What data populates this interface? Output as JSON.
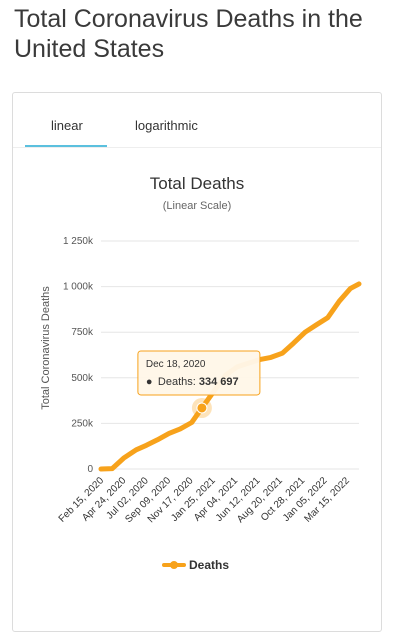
{
  "page_title": "Total Coronavirus Deaths in the United States",
  "tabs": [
    {
      "label": "linear",
      "active": true
    },
    {
      "label": "logarithmic",
      "active": false
    }
  ],
  "colors": {
    "series": "#f7a21b",
    "tab_accent": "#5bc0de",
    "grid": "#e6e6e6"
  },
  "chart_data": {
    "type": "line",
    "title": "Total Deaths",
    "subtitle": "(Linear Scale)",
    "ylabel": "Total Coronavirus Deaths",
    "xlabel": "",
    "ylim": [
      0,
      1250000
    ],
    "yticks": [
      0,
      250000,
      500000,
      750000,
      1000000,
      1250000
    ],
    "ytick_labels": [
      "0",
      "250k",
      "500k",
      "750k",
      "1 000k",
      "1 250k"
    ],
    "xtick_labels": [
      "Feb 15, 2020",
      "Apr 24, 2020",
      "Jul 02, 2020",
      "Sep 09, 2020",
      "Nov 17, 2020",
      "Jan 25, 2021",
      "Apr 04, 2021",
      "Jun 12, 2021",
      "Aug 20, 2021",
      "Oct 28, 2021",
      "Jan 05, 2022",
      "Mar 15, 2022"
    ],
    "grid": true,
    "legend": "bottom",
    "series": [
      {
        "name": "Deaths",
        "x": [
          "2020-02-15",
          "2020-03-20",
          "2020-04-24",
          "2020-06-01",
          "2020-07-02",
          "2020-08-05",
          "2020-09-09",
          "2020-10-13",
          "2020-11-17",
          "2020-12-18",
          "2021-01-25",
          "2021-02-28",
          "2021-04-04",
          "2021-05-08",
          "2021-06-12",
          "2021-07-16",
          "2021-08-20",
          "2021-09-23",
          "2021-10-28",
          "2021-12-01",
          "2022-01-05",
          "2022-02-09",
          "2022-03-15",
          "2022-04-10"
        ],
        "values": [
          0,
          2000,
          60000,
          105000,
          130000,
          160000,
          195000,
          220000,
          255000,
          334697,
          430000,
          515000,
          560000,
          580000,
          600000,
          612000,
          635000,
          690000,
          750000,
          790000,
          830000,
          920000,
          990000,
          1015000
        ]
      }
    ],
    "tooltip": {
      "date": "Dec 18, 2020",
      "series": "Deaths",
      "value": "334 697"
    }
  },
  "legend": {
    "label": "Deaths"
  }
}
